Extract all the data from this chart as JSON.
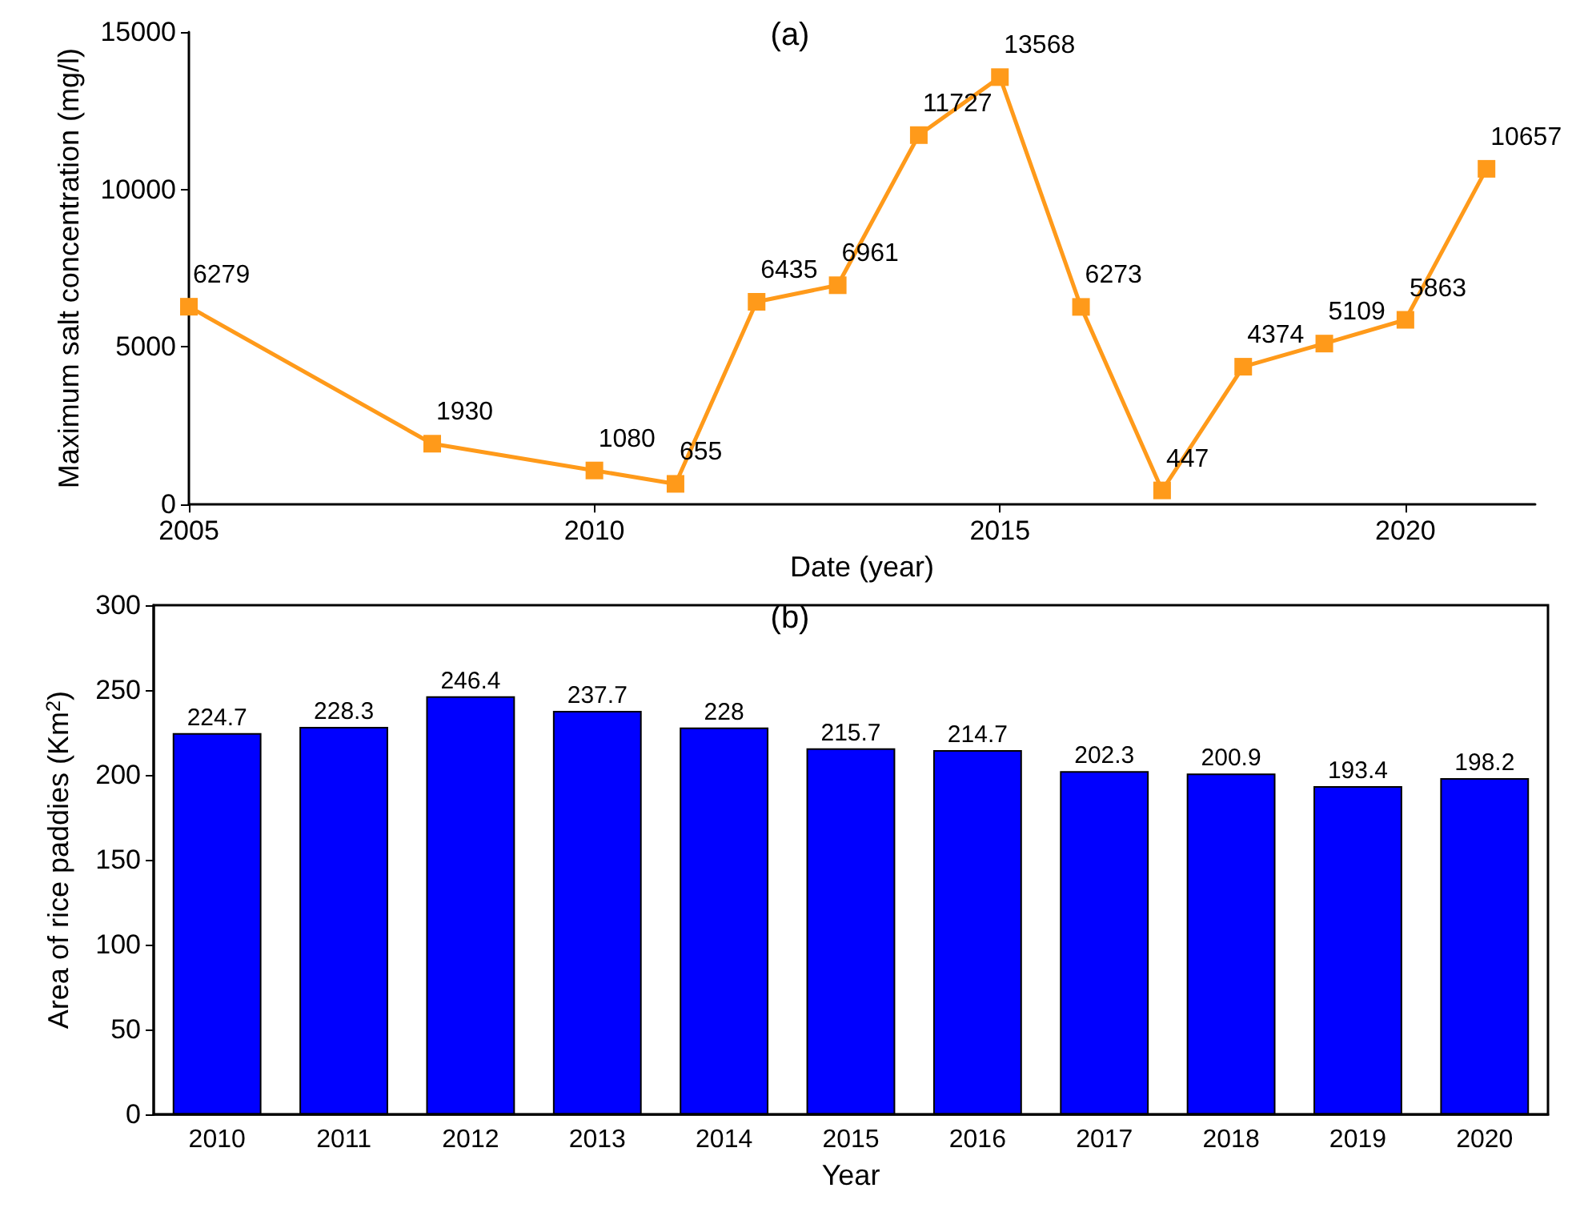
{
  "chart_data": [
    {
      "type": "line",
      "xlabel": "Date (year)",
      "ylabel": "Maximum salt concentration (mg/l)",
      "annotations": [
        "(a)"
      ],
      "x": [
        2005,
        2008,
        2010,
        2011,
        2012,
        2013,
        2014,
        2015,
        2016,
        2017,
        2018,
        2019,
        2020,
        2021
      ],
      "series": [
        {
          "color": "#ff9a1a",
          "values": [
            6279,
            1930,
            1080,
            655,
            6435,
            6961,
            11727,
            13568,
            6273,
            447,
            4374,
            5109,
            5863,
            10657
          ]
        }
      ],
      "xlim": [
        2005,
        2021.6
      ],
      "xticks": [
        2005,
        2010,
        2015,
        2020
      ],
      "ylim": [
        0,
        15000
      ],
      "yticks": [
        0,
        5000,
        10000,
        15000
      ],
      "marker": "square",
      "line_style": "solid",
      "data_labels": true
    },
    {
      "type": "bar",
      "xlabel": "Year",
      "ylabel": "Area of rice paddies (Km$^{2}$)",
      "annotations": [
        "(b)"
      ],
      "categories": [
        "2010",
        "2011",
        "2012",
        "2013",
        "2014",
        "2015",
        "2016",
        "2017",
        "2018",
        "2019",
        "2020"
      ],
      "series": [
        {
          "color": "#0000ff",
          "values": [
            224.7,
            228.3,
            246.4,
            237.7,
            228,
            215.7,
            214.7,
            202.3,
            200.9,
            193.4,
            198.2
          ]
        }
      ],
      "ylim": [
        0,
        300
      ],
      "yticks": [
        0,
        50,
        100,
        150,
        200,
        250,
        300
      ],
      "data_labels": true
    }
  ]
}
